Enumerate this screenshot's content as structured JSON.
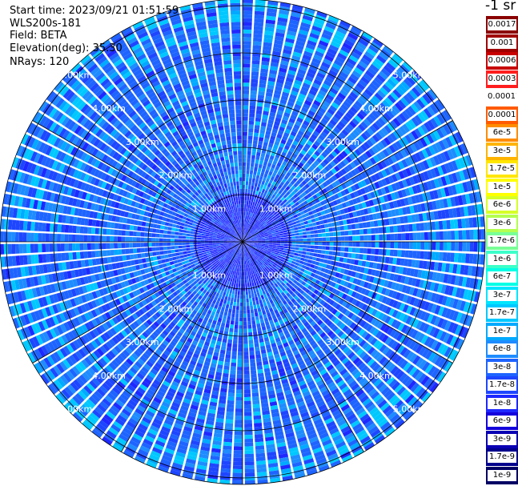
{
  "header": {
    "start_time": "Start time: 2023/09/21 01:51:59",
    "instrument": "WLS200s-181",
    "field": "Field: BETA",
    "elevation": "Elevation(deg): 35.30",
    "nrays": "NRays: 120"
  },
  "units_label": "-1 sr",
  "chart_data": {
    "type": "heatmap",
    "projection": "polar-ppi",
    "field": "BETA",
    "elevation_deg": 35.3,
    "n_rays": 120,
    "range_rings_km": [
      1.0,
      2.0,
      3.0,
      4.0,
      5.0
    ],
    "range_ring_labels": [
      "1.00km",
      "2.00km",
      "3.00km",
      "4.00km",
      "5.00km"
    ],
    "spoke_angles_deg": [
      0,
      30,
      60,
      90,
      120,
      150,
      180,
      210,
      240,
      270,
      300,
      330
    ],
    "max_range_km": 6.4,
    "dominant_level": "3e-8",
    "near_range_level": "1e-8",
    "colorbar": {
      "ticks": [
        "0.0017",
        "0.001",
        "0.0006",
        "0.0003",
        "0.00017",
        "0.0001",
        "6e-5",
        "3e-5",
        "1.7e-5",
        "1e-5",
        "6e-6",
        "3e-6",
        "1.7e-6",
        "1e-6",
        "6e-7",
        "3e-7",
        "1.7e-7",
        "1e-7",
        "6e-8",
        "3e-8",
        "1.7e-8",
        "1e-8",
        "6e-9",
        "3e-9",
        "1.7e-9",
        "1e-9"
      ],
      "colors": [
        "#8b0000",
        "#a00000",
        "#c80000",
        "#ff1e1e",
        "#ffffff",
        "#ff5a00",
        "#ff8c00",
        "#ffb400",
        "#ffe600",
        "#ffff00",
        "#d7ff28",
        "#b4ff50",
        "#78ff96",
        "#3cffc8",
        "#00ffe6",
        "#00e6ff",
        "#00c8ff",
        "#00aaff",
        "#1e8cff",
        "#1e64ff",
        "#1e46ff",
        "#1e28ff",
        "#1400dc",
        "#0a00b4",
        "#00008c",
        "#000064"
      ]
    }
  }
}
